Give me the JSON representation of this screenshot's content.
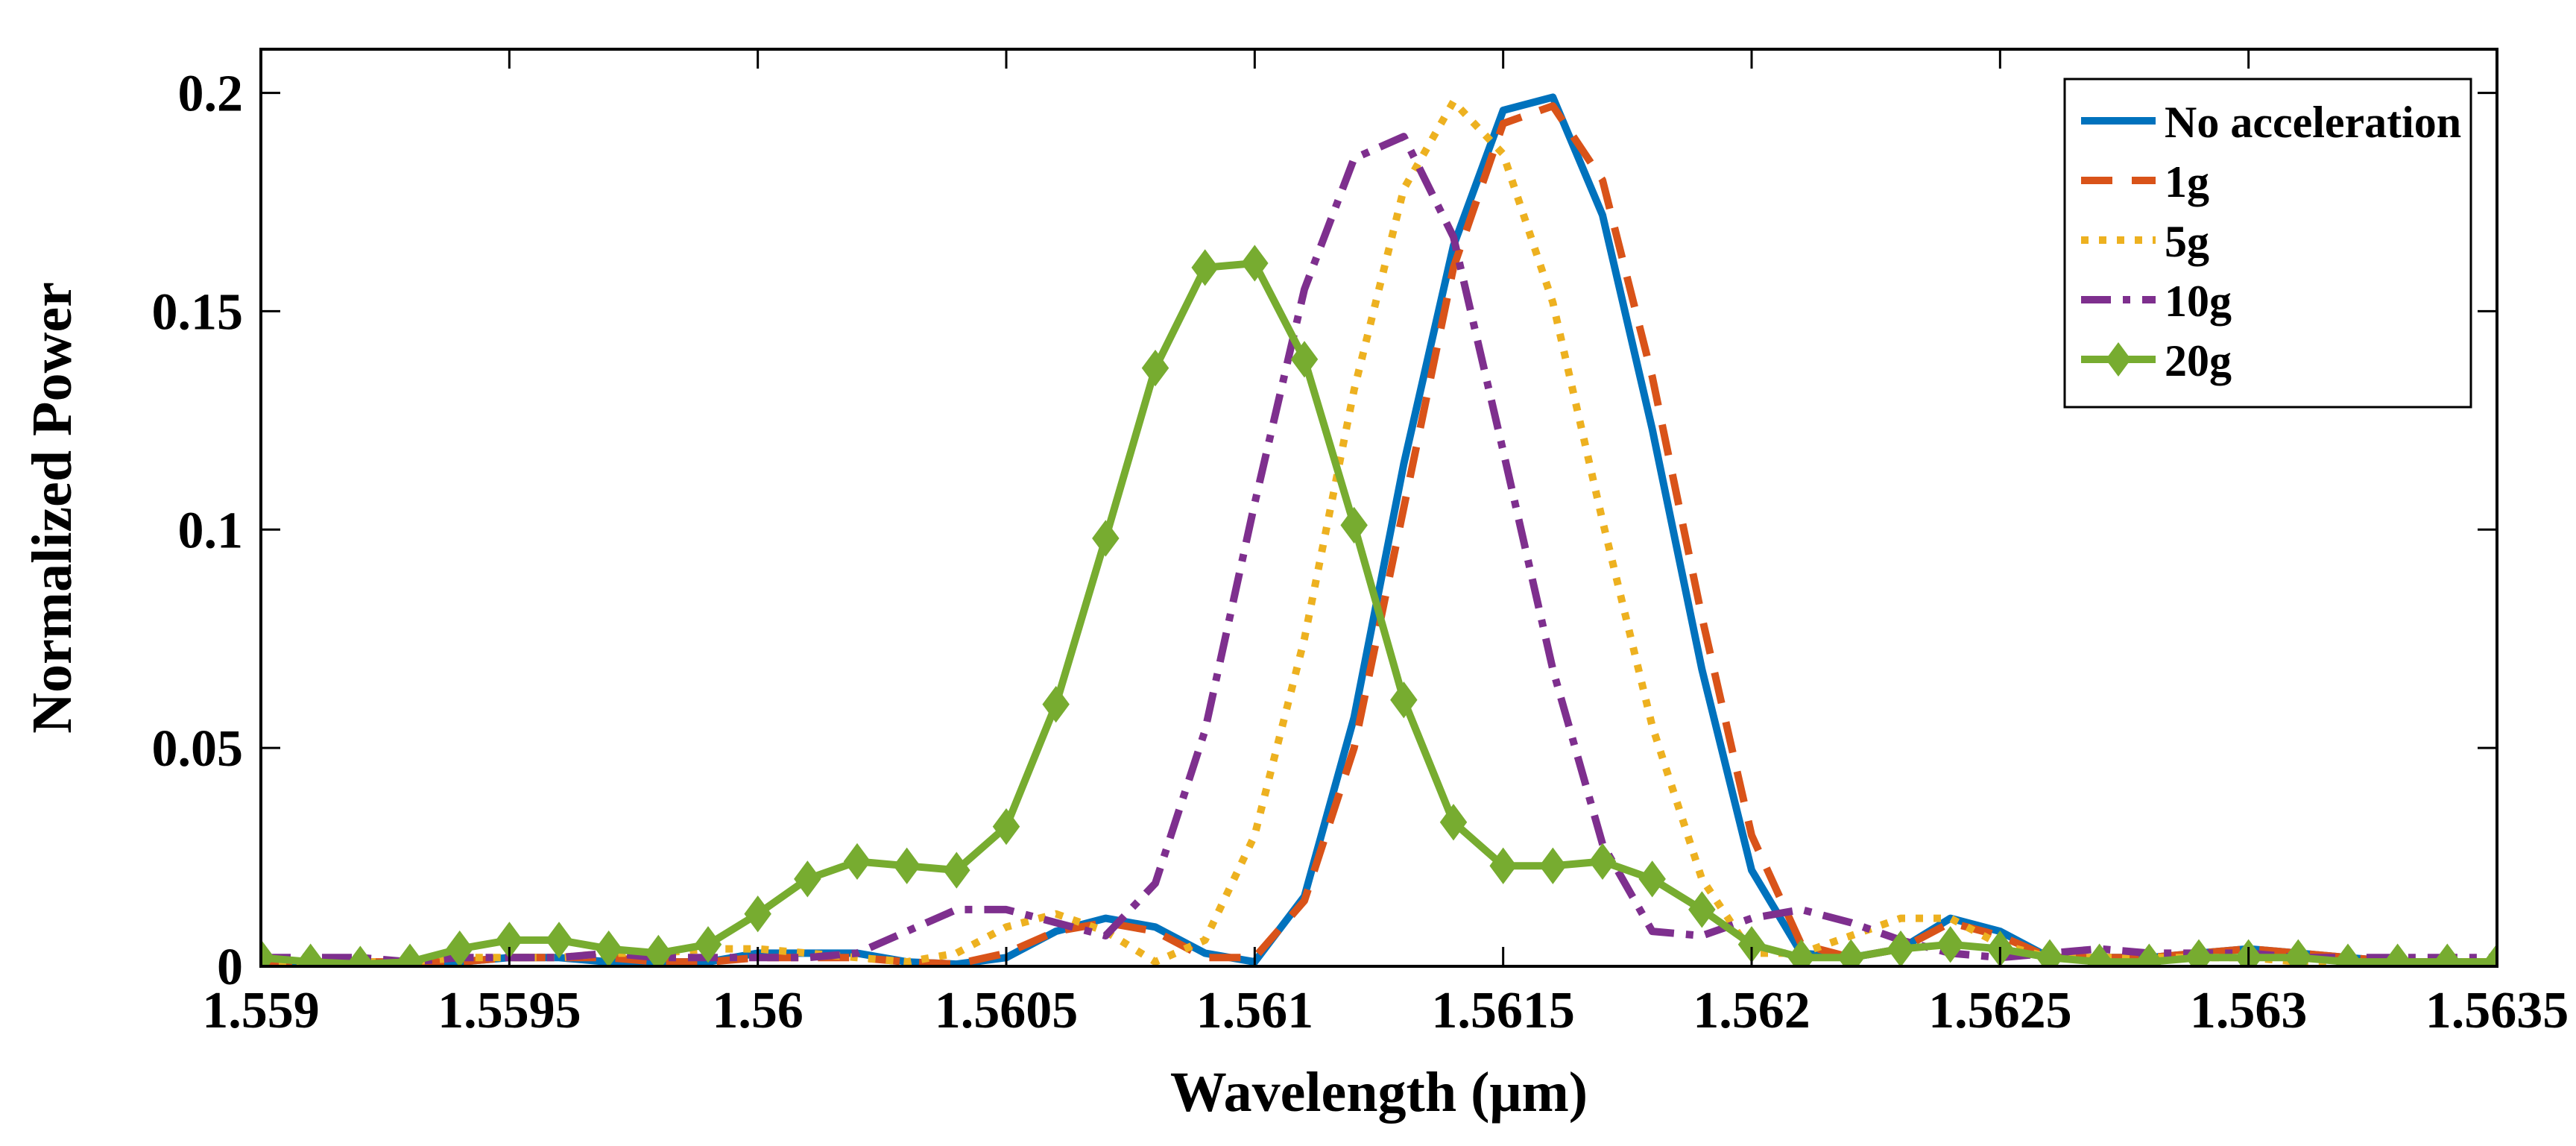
{
  "chart_data": {
    "type": "line",
    "title": "",
    "xlabel": "Wavelength (μm)",
    "ylabel": "Normalized Power",
    "xlim": [
      1.559,
      1.5635
    ],
    "ylim": [
      0,
      0.21
    ],
    "xticks": [
      1.559,
      1.5595,
      1.56,
      1.5605,
      1.561,
      1.5615,
      1.562,
      1.5625,
      1.563,
      1.5635
    ],
    "xtick_labels": [
      "1.559",
      "1.5595",
      "1.56",
      "1.5605",
      "1.561",
      "1.5615",
      "1.562",
      "1.5625",
      "1.563",
      "1.5635"
    ],
    "yticks": [
      0,
      0.05,
      0.1,
      0.15,
      0.2
    ],
    "ytick_labels": [
      "0",
      "0.05",
      "0.1",
      "0.15",
      "0.2"
    ],
    "grid": false,
    "legend_position": "top-right",
    "x": [
      1.559,
      1.5591,
      1.5592,
      1.5593,
      1.5594,
      1.5595,
      1.5596,
      1.5597,
      1.5598,
      1.5599,
      1.56,
      1.5601,
      1.5602,
      1.5603,
      1.5604,
      1.5605,
      1.5606,
      1.5607,
      1.5608,
      1.5609,
      1.561,
      1.5611,
      1.5612,
      1.5613,
      1.5614,
      1.5615,
      1.5616,
      1.5617,
      1.5618,
      1.5619,
      1.562,
      1.5621,
      1.5622,
      1.5623,
      1.5624,
      1.5625,
      1.5626,
      1.5627,
      1.5628,
      1.5629,
      1.563,
      1.5631,
      1.5632,
      1.5633,
      1.5634,
      1.5635
    ],
    "series": [
      {
        "name": "No acceleration",
        "color": "#0072BD",
        "style": "solid",
        "marker": "none",
        "values": [
          0.001,
          0.0005,
          0.0005,
          0.0005,
          0.001,
          0.002,
          0.002,
          0.001,
          0.001,
          0.001,
          0.003,
          0.003,
          0.003,
          0.001,
          0.0005,
          0.002,
          0.008,
          0.011,
          0.009,
          0.003,
          0.001,
          0.016,
          0.057,
          0.115,
          0.165,
          0.196,
          0.199,
          0.172,
          0.123,
          0.068,
          0.022,
          0.003,
          0.002,
          0.004,
          0.011,
          0.008,
          0.002,
          0.002,
          0.002,
          0.003,
          0.004,
          0.003,
          0.002,
          0.001,
          0.001,
          0.001
        ]
      },
      {
        "name": "1g",
        "color": "#D95319",
        "style": "dashed",
        "marker": "none",
        "values": [
          0.001,
          0.001,
          0.001,
          0.001,
          0.001,
          0.002,
          0.002,
          0.002,
          0.001,
          0.001,
          0.002,
          0.002,
          0.002,
          0.001,
          0.0005,
          0.003,
          0.008,
          0.01,
          0.008,
          0.002,
          0.002,
          0.015,
          0.05,
          0.105,
          0.16,
          0.193,
          0.197,
          0.18,
          0.135,
          0.08,
          0.03,
          0.005,
          0.002,
          0.004,
          0.01,
          0.007,
          0.002,
          0.002,
          0.002,
          0.003,
          0.004,
          0.003,
          0.002,
          0.001,
          0.001,
          0.001
        ]
      },
      {
        "name": "5g",
        "color": "#EDB120",
        "style": "dotted",
        "marker": "none",
        "values": [
          0.001,
          0.001,
          0.001,
          0.001,
          0.002,
          0.002,
          0.002,
          0.003,
          0.003,
          0.004,
          0.004,
          0.003,
          0.002,
          0.001,
          0.003,
          0.009,
          0.012,
          0.008,
          0.001,
          0.006,
          0.03,
          0.075,
          0.132,
          0.178,
          0.198,
          0.186,
          0.152,
          0.102,
          0.055,
          0.02,
          0.003,
          0.003,
          0.007,
          0.011,
          0.011,
          0.005,
          0.002,
          0.002,
          0.002,
          0.002,
          0.002,
          0.001,
          0.001,
          0.001,
          0.001,
          0.001
        ]
      },
      {
        "name": "10g",
        "color": "#7E2F8E",
        "style": "dashdot",
        "marker": "none",
        "values": [
          0.002,
          0.002,
          0.002,
          0.001,
          0.002,
          0.002,
          0.002,
          0.003,
          0.002,
          0.002,
          0.002,
          0.002,
          0.003,
          0.008,
          0.013,
          0.013,
          0.01,
          0.007,
          0.019,
          0.054,
          0.106,
          0.155,
          0.185,
          0.19,
          0.167,
          0.118,
          0.068,
          0.028,
          0.008,
          0.007,
          0.011,
          0.013,
          0.01,
          0.006,
          0.003,
          0.002,
          0.003,
          0.004,
          0.003,
          0.003,
          0.003,
          0.002,
          0.002,
          0.002,
          0.002,
          0.002
        ]
      },
      {
        "name": "20g",
        "color": "#77AC30",
        "style": "solid",
        "marker": "diamond",
        "values": [
          0.002,
          0.001,
          0.0005,
          0.001,
          0.004,
          0.006,
          0.006,
          0.004,
          0.003,
          0.005,
          0.012,
          0.02,
          0.024,
          0.023,
          0.022,
          0.032,
          0.06,
          0.098,
          0.137,
          0.16,
          0.161,
          0.139,
          0.101,
          0.061,
          0.033,
          0.023,
          0.023,
          0.024,
          0.02,
          0.013,
          0.005,
          0.002,
          0.002,
          0.004,
          0.005,
          0.004,
          0.002,
          0.001,
          0.001,
          0.002,
          0.002,
          0.002,
          0.001,
          0.001,
          0.001,
          0.001
        ]
      }
    ]
  }
}
